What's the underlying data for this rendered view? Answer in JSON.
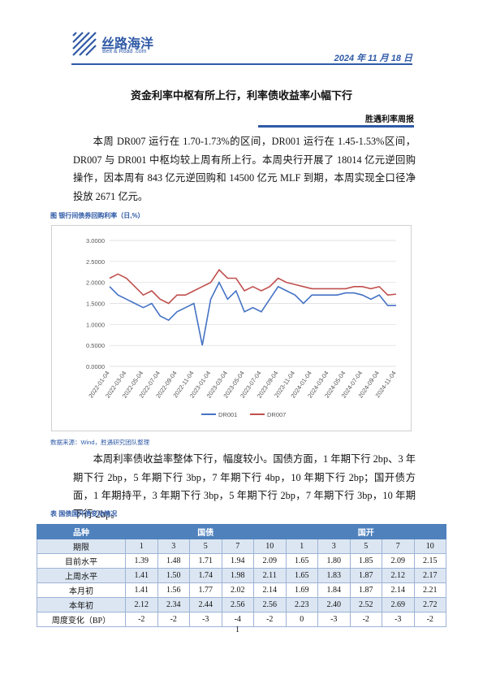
{
  "header": {
    "logo_name": "丝路海洋",
    "logo_sub": "Belt & Road .com",
    "date": "2024 年 11 月 18 日"
  },
  "title": "资金利率中枢有所上行，利率债收益率小幅下行",
  "column": "胜遇利率周报",
  "paragraphs": [
    "本周 DR007 运行在 1.70-1.73%的区间，DR001 运行在 1.45-1.53%区间，DR007 与 DR001 中枢均较上周有所上行。本周央行开展了 18014 亿元逆回购操作，因本周有 843 亿元逆回购和 14500 亿元 MLF 到期，本周实现全口径净投放 2671 亿元。",
    "本周利率债收益率整体下行，幅度较小。国债方面，1 年期下行 2bp、3 年期下行 2bp，5 年期下行 3bp，7 年期下行 4bp，10 年期下行 2bp；国开债方面，1 年期持平，3 年期下行 3bp，5 年期下行 2bp，7 年期下行 3bp，10 年期下行 2bp。"
  ],
  "figure": {
    "caption": "图   银行间债券回购利率（日,%）",
    "source": "数据来源：Wind，胜遇研究团队整理"
  },
  "chart_data": {
    "type": "line",
    "categories": [
      "2022-01-04",
      null,
      "2022-03-04",
      null,
      "2022-05-04",
      null,
      "2022-07-04",
      null,
      "2022-09-04",
      null,
      "2022-11-04",
      null,
      "2023-01-04",
      null,
      "2023-03-04",
      null,
      "2023-05-04",
      null,
      "2023-07-04",
      null,
      "2023-09-04",
      null,
      "2023-11-04",
      null,
      "2024-01-04",
      null,
      "2024-03-04",
      null,
      "2024-05-04",
      null,
      "2024-07-04",
      null,
      "2024-09-04",
      null,
      "2024-11-04"
    ],
    "series": [
      {
        "name": "DR001",
        "color": "#4472c4",
        "values": [
          1.9,
          1.7,
          1.6,
          1.5,
          1.4,
          1.5,
          1.2,
          1.1,
          1.3,
          1.4,
          1.5,
          0.5,
          1.6,
          2.0,
          1.6,
          1.8,
          1.3,
          1.4,
          1.3,
          1.6,
          1.9,
          1.8,
          1.7,
          1.5,
          1.7,
          1.7,
          1.7,
          1.7,
          1.75,
          1.75,
          1.7,
          1.6,
          1.7,
          1.45,
          1.45
        ]
      },
      {
        "name": "DR007",
        "color": "#c0504d",
        "values": [
          2.1,
          2.2,
          2.1,
          1.9,
          1.7,
          1.8,
          1.6,
          1.5,
          1.7,
          1.7,
          1.8,
          1.9,
          2.0,
          2.3,
          2.1,
          2.1,
          1.8,
          1.9,
          1.8,
          1.9,
          2.1,
          2.0,
          1.95,
          1.9,
          1.85,
          1.85,
          1.85,
          1.85,
          1.85,
          1.9,
          1.9,
          1.85,
          1.9,
          1.7,
          1.72
        ]
      }
    ],
    "ylim": [
      0,
      3
    ],
    "yticks": [
      {
        "value": 0,
        "label": "0.0000"
      },
      {
        "value": 0.5,
        "label": "0.5000"
      },
      {
        "value": 1,
        "label": "1.0000"
      },
      {
        "value": 1.5,
        "label": "1.5000"
      },
      {
        "value": 2,
        "label": "2.0000"
      },
      {
        "value": 2.5,
        "label": "2.5000"
      },
      {
        "value": 3,
        "label": "3.0000"
      }
    ],
    "grid": true,
    "legend": "bottom"
  },
  "table": {
    "caption": "表   国债国开债变动情况",
    "groups": [
      "品种",
      "国债",
      "国开"
    ],
    "terms_label": "期限",
    "terms": [
      "1",
      "3",
      "5",
      "7",
      "10",
      "1",
      "3",
      "5",
      "7",
      "10"
    ],
    "rows": [
      [
        "目前水平",
        "1.39",
        "1.48",
        "1.71",
        "1.94",
        "2.09",
        "1.65",
        "1.80",
        "1.85",
        "2.09",
        "2.15"
      ],
      [
        "上周水平",
        "1.41",
        "1.50",
        "1.74",
        "1.98",
        "2.11",
        "1.65",
        "1.83",
        "1.87",
        "2.12",
        "2.17"
      ],
      [
        "本月初",
        "1.41",
        "1.56",
        "1.77",
        "2.02",
        "2.14",
        "1.69",
        "1.84",
        "1.87",
        "2.14",
        "2.21"
      ],
      [
        "本年初",
        "2.12",
        "2.34",
        "2.44",
        "2.56",
        "2.56",
        "2.23",
        "2.40",
        "2.52",
        "2.69",
        "2.72"
      ],
      [
        "周度变化（BP）",
        "-2",
        "-2",
        "-3",
        "-4",
        "-2",
        "0",
        "-3",
        "-2",
        "-3",
        "-2"
      ]
    ]
  },
  "page_number": "1"
}
